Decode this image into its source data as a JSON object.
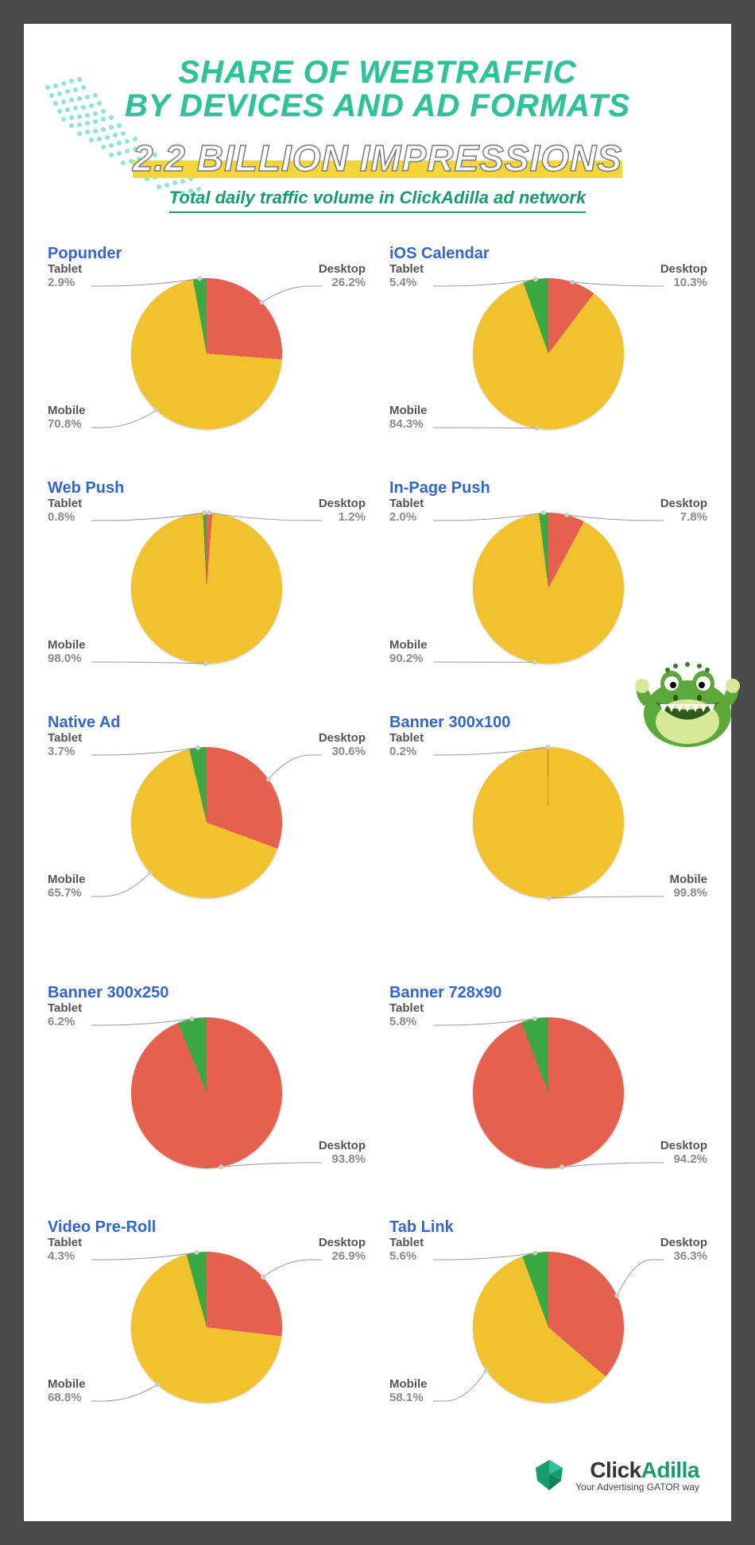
{
  "header": {
    "title_line1": "SHARE OF WEBTRAFFIC",
    "title_line2": "BY DEVICES AND AD FORMATS",
    "impressions": "2.2 BILLION IMPRESSIONS",
    "subtitle": "Total daily traffic volume in ClickAdilla ad network"
  },
  "colors": {
    "mobile": "#f2c12e",
    "desktop": "#e5604f",
    "tablet": "#3ba843",
    "title": "#2cc29c",
    "chart_title": "#3366cc",
    "label_text": "#6b6b6b",
    "highlight": "#f4d638",
    "subtitle_text": "#1a9b6f"
  },
  "charts": [
    {
      "title": "Popunder",
      "mobile": 70.8,
      "desktop": 26.2,
      "tablet": 2.9
    },
    {
      "title": "iOS Calendar",
      "mobile": 84.3,
      "desktop": 10.3,
      "tablet": 5.4
    },
    {
      "title": "Web Push",
      "mobile": 98.0,
      "desktop": 1.2,
      "tablet": 0.8
    },
    {
      "title": "In-Page Push",
      "mobile": 90.2,
      "desktop": 7.8,
      "tablet": 2.0
    },
    {
      "title": "Native Ad",
      "mobile": 65.7,
      "desktop": 30.6,
      "tablet": 3.7
    },
    {
      "title": "Banner 300x100",
      "mobile": 99.8,
      "desktop": 0,
      "tablet": 0.2
    },
    {
      "title": "Banner 300x250",
      "mobile": 0,
      "desktop": 93.8,
      "tablet": 6.2
    },
    {
      "title": "Banner 728x90",
      "mobile": 0,
      "desktop": 94.2,
      "tablet": 5.8
    },
    {
      "title": "Video Pre-Roll",
      "mobile": 68.8,
      "desktop": 26.9,
      "tablet": 4.3
    },
    {
      "title": "Tab Link",
      "mobile": 58.1,
      "desktop": 36.3,
      "tablet": 5.6
    }
  ],
  "segment_labels": {
    "mobile": "Mobile",
    "desktop": "Desktop",
    "tablet": "Tablet"
  },
  "footer": {
    "brand_1": "Click",
    "brand_2": "Adilla",
    "tagline": "Your Advertising GATOR way"
  }
}
